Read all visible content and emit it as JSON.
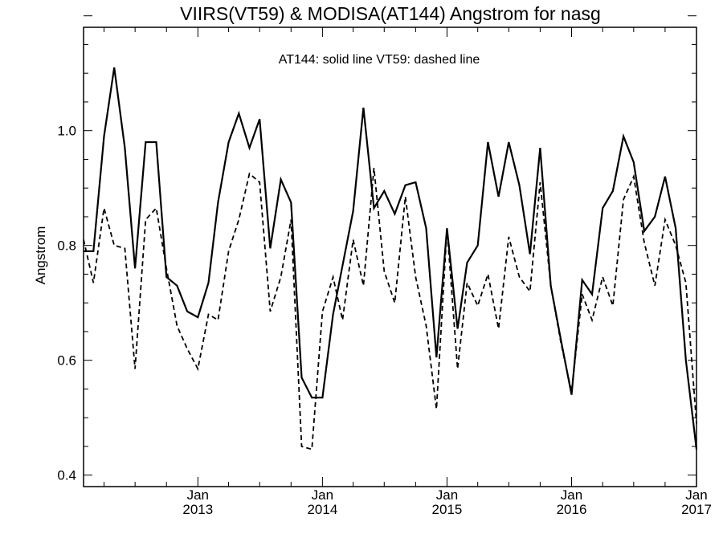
{
  "chart_data": {
    "type": "line",
    "title": "VIIRS(VT59) & MODISA(AT144)  Angstrom for nasg",
    "annotation": "AT144: solid line   VT59: dashed line",
    "xlabel": "",
    "ylabel": "Angstrom",
    "xlim": [
      "2012-02-01",
      "2017-01-01"
    ],
    "ylim": [
      0.38,
      1.18
    ],
    "yticks": [
      0.4,
      0.6,
      0.8,
      1.0
    ],
    "ytick_labels": [
      "0.4",
      "0.6",
      "0.8",
      "1.0"
    ],
    "xticks": [
      {
        "date": "2013-01-01",
        "month": "Jan",
        "year": "2013"
      },
      {
        "date": "2014-01-01",
        "month": "Jan",
        "year": "2014"
      },
      {
        "date": "2015-01-01",
        "month": "Jan",
        "year": "2015"
      },
      {
        "date": "2016-01-01",
        "month": "Jan",
        "year": "2016"
      },
      {
        "date": "2017-01-01",
        "month": "Jan",
        "year": "2017"
      }
    ],
    "series": [
      {
        "name": "AT144",
        "style": "solid",
        "color": "#000000",
        "x": [
          "2012-02-01",
          "2012-03-01",
          "2012-04-01",
          "2012-05-01",
          "2012-06-01",
          "2012-07-01",
          "2012-08-01",
          "2012-09-01",
          "2012-10-01",
          "2012-11-01",
          "2012-12-01",
          "2013-01-01",
          "2013-02-01",
          "2013-03-01",
          "2013-04-01",
          "2013-05-01",
          "2013-06-01",
          "2013-07-01",
          "2013-08-01",
          "2013-09-01",
          "2013-10-01",
          "2013-11-01",
          "2013-12-01",
          "2014-01-01",
          "2014-02-01",
          "2014-03-01",
          "2014-04-01",
          "2014-05-01",
          "2014-06-01",
          "2014-07-01",
          "2014-08-01",
          "2014-09-01",
          "2014-10-01",
          "2014-11-01",
          "2014-12-01",
          "2015-01-01",
          "2015-02-01",
          "2015-03-01",
          "2015-04-01",
          "2015-05-01",
          "2015-06-01",
          "2015-07-01",
          "2015-08-01",
          "2015-09-01",
          "2015-10-01",
          "2015-11-01",
          "2015-12-01",
          "2016-01-01",
          "2016-02-01",
          "2016-03-01",
          "2016-04-01",
          "2016-05-01",
          "2016-06-01",
          "2016-07-01",
          "2016-08-01",
          "2016-09-01",
          "2016-10-01",
          "2016-11-01",
          "2016-12-01",
          "2017-01-01"
        ],
        "y": [
          0.79,
          0.79,
          0.99,
          1.11,
          0.97,
          0.76,
          0.98,
          0.98,
          0.745,
          0.73,
          0.685,
          0.675,
          0.735,
          0.875,
          0.98,
          1.03,
          0.97,
          1.02,
          0.795,
          0.915,
          0.875,
          0.57,
          0.535,
          0.535,
          0.68,
          0.765,
          0.86,
          1.04,
          0.865,
          0.895,
          0.855,
          0.905,
          0.91,
          0.83,
          0.605,
          0.83,
          0.655,
          0.77,
          0.8,
          0.98,
          0.885,
          0.98,
          0.905,
          0.785,
          0.97,
          0.73,
          0.635,
          0.54,
          0.74,
          0.715,
          0.865,
          0.895,
          0.99,
          0.945,
          0.825,
          0.85,
          0.92,
          0.83,
          0.6,
          0.445
        ]
      },
      {
        "name": "VT59",
        "style": "dashed",
        "color": "#000000",
        "x": [
          "2012-02-01",
          "2012-03-01",
          "2012-04-01",
          "2012-05-01",
          "2012-06-01",
          "2012-07-01",
          "2012-08-01",
          "2012-09-01",
          "2012-10-01",
          "2012-11-01",
          "2012-12-01",
          "2013-01-01",
          "2013-02-01",
          "2013-03-01",
          "2013-04-01",
          "2013-05-01",
          "2013-06-01",
          "2013-07-01",
          "2013-08-01",
          "2013-09-01",
          "2013-10-01",
          "2013-11-01",
          "2013-12-01",
          "2014-01-01",
          "2014-02-01",
          "2014-03-01",
          "2014-04-01",
          "2014-05-01",
          "2014-06-01",
          "2014-07-01",
          "2014-08-01",
          "2014-09-01",
          "2014-10-01",
          "2014-11-01",
          "2014-12-01",
          "2015-01-01",
          "2015-02-01",
          "2015-03-01",
          "2015-04-01",
          "2015-05-01",
          "2015-06-01",
          "2015-07-01",
          "2015-08-01",
          "2015-09-01",
          "2015-10-01",
          "2015-11-01",
          "2015-12-01",
          "2016-01-01",
          "2016-02-01",
          "2016-03-01",
          "2016-04-01",
          "2016-05-01",
          "2016-06-01",
          "2016-07-01",
          "2016-08-01",
          "2016-09-01",
          "2016-10-01",
          "2016-11-01",
          "2016-12-01",
          "2017-01-01"
        ],
        "y": [
          0.81,
          0.735,
          0.865,
          0.8,
          0.795,
          0.585,
          0.845,
          0.865,
          0.76,
          0.66,
          0.62,
          0.585,
          0.68,
          0.67,
          0.79,
          0.845,
          0.925,
          0.91,
          0.685,
          0.745,
          0.845,
          0.45,
          0.445,
          0.685,
          0.745,
          0.67,
          0.81,
          0.73,
          0.935,
          0.755,
          0.7,
          0.885,
          0.745,
          0.66,
          0.515,
          0.83,
          0.585,
          0.735,
          0.695,
          0.75,
          0.655,
          0.815,
          0.745,
          0.72,
          0.91,
          0.73,
          0.63,
          0.545,
          0.715,
          0.67,
          0.745,
          0.695,
          0.88,
          0.92,
          0.805,
          0.73,
          0.845,
          0.8,
          0.735,
          0.49
        ]
      }
    ]
  }
}
